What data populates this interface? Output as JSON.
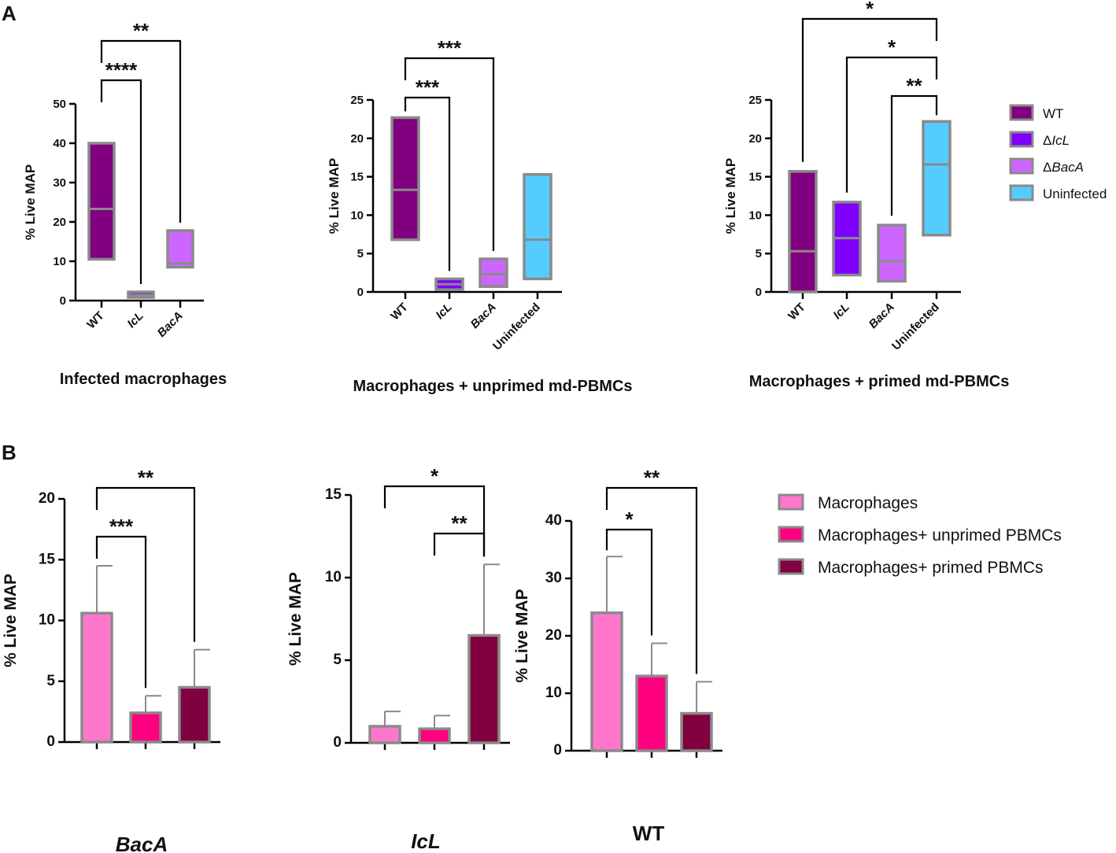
{
  "panel_labels": {
    "a": "A",
    "b": "B"
  },
  "colors": {
    "wt": "#800080",
    "icl": "#8000ff",
    "baca": "#cc66ff",
    "uninfected": "#55ccff",
    "macrophages": "#ff77cc",
    "unprimed": "#ff0080",
    "primed": "#800040",
    "outline": "#8a8a8a"
  },
  "legend_a": {
    "items": [
      {
        "key": "wt",
        "label": "WT",
        "prefix": "",
        "italic": false
      },
      {
        "key": "icl",
        "label": "IcL",
        "prefix": "Δ",
        "italic": true
      },
      {
        "key": "baca",
        "label": "BacA",
        "prefix": "Δ",
        "italic": true
      },
      {
        "key": "uninfected",
        "label": "Uninfected",
        "prefix": "",
        "italic": false
      }
    ]
  },
  "legend_b": {
    "items": [
      {
        "key": "macrophages",
        "label": "Macrophages"
      },
      {
        "key": "unprimed",
        "label": "Macrophages+ unprimed PBMCs"
      },
      {
        "key": "primed",
        "label": "Macrophages+ primed PBMCs"
      }
    ]
  },
  "chart_data": [
    {
      "id": "a1",
      "type": "box",
      "title": "Infected macrophages",
      "ylabel": "% Live MAP",
      "ylim": [
        0,
        50
      ],
      "yticks": [
        0,
        10,
        20,
        30,
        40,
        50
      ],
      "categories": [
        "WT",
        "IcL",
        "BacA"
      ],
      "italic": [
        false,
        true,
        true
      ],
      "colors": [
        "wt",
        "icl",
        "baca"
      ],
      "boxes": [
        {
          "min": 10.5,
          "median": 23.3,
          "max": 40.0
        },
        {
          "min": 0.8,
          "median": 1.4,
          "max": 2.2
        },
        {
          "min": 8.5,
          "median": 9.5,
          "max": 17.8
        }
      ],
      "brackets": [
        {
          "from": 0,
          "to": 1,
          "label": "****",
          "level": 0
        },
        {
          "from": 0,
          "to": 2,
          "label": "**",
          "level": 1
        }
      ]
    },
    {
      "id": "a2",
      "type": "box",
      "title": "Macrophages + unprimed md-PBMCs",
      "ylabel": "% Live MAP",
      "ylim": [
        0,
        25
      ],
      "yticks": [
        0,
        5,
        10,
        15,
        20,
        25
      ],
      "categories": [
        "WT",
        "IcL",
        "BacA",
        "Uninfected"
      ],
      "italic": [
        false,
        true,
        true,
        false
      ],
      "colors": [
        "wt",
        "icl",
        "baca",
        "uninfected"
      ],
      "boxes": [
        {
          "min": 6.8,
          "median": 13.3,
          "max": 22.7
        },
        {
          "min": 0.3,
          "median": 1.0,
          "max": 1.7
        },
        {
          "min": 0.7,
          "median": 2.3,
          "max": 4.3
        },
        {
          "min": 1.7,
          "median": 6.8,
          "max": 15.3
        }
      ],
      "brackets": [
        {
          "from": 0,
          "to": 1,
          "label": "***",
          "level": 0
        },
        {
          "from": 0,
          "to": 2,
          "label": "***",
          "level": 1
        }
      ]
    },
    {
      "id": "a3",
      "type": "box",
      "title": "Macrophages + primed md-PBMCs",
      "ylabel": "% Live MAP",
      "ylim": [
        0,
        25
      ],
      "yticks": [
        0,
        5,
        10,
        15,
        20,
        25
      ],
      "categories": [
        "WT",
        "IcL",
        "BacA",
        "Uninfected"
      ],
      "italic": [
        false,
        true,
        true,
        false
      ],
      "colors": [
        "wt",
        "icl",
        "baca",
        "uninfected"
      ],
      "boxes": [
        {
          "min": 0.0,
          "median": 5.3,
          "max": 15.7
        },
        {
          "min": 2.2,
          "median": 7.0,
          "max": 11.7
        },
        {
          "min": 1.4,
          "median": 4.0,
          "max": 8.7
        },
        {
          "min": 7.4,
          "median": 16.6,
          "max": 22.2
        }
      ],
      "brackets": [
        {
          "from": 2,
          "to": 3,
          "label": "**",
          "level": 0
        },
        {
          "from": 1,
          "to": 3,
          "label": "*",
          "level": 1
        },
        {
          "from": 0,
          "to": 3,
          "label": "*",
          "level": 2
        }
      ]
    },
    {
      "id": "b1",
      "type": "bar",
      "title": "BacA",
      "title_italic": true,
      "ylabel": "% Live MAP",
      "ylim": [
        0,
        20
      ],
      "yticks": [
        0,
        5,
        10,
        15,
        20
      ],
      "categories": [
        "Macrophages",
        "Macrophages+ unprimed PBMCs",
        "Macrophages+ primed PBMCs"
      ],
      "colors": [
        "macrophages",
        "unprimed",
        "primed"
      ],
      "values": [
        10.6,
        2.4,
        4.5
      ],
      "errors": [
        3.9,
        1.4,
        3.1
      ],
      "brackets": [
        {
          "from": 0,
          "to": 1,
          "label": "***",
          "level": 0
        },
        {
          "from": 0,
          "to": 2,
          "label": "**",
          "level": 1
        }
      ]
    },
    {
      "id": "b2",
      "type": "bar",
      "title": "IcL",
      "title_italic": true,
      "ylabel": "% Live MAP",
      "ylim": [
        0,
        15
      ],
      "yticks": [
        0,
        5,
        10,
        15
      ],
      "categories": [
        "Macrophages",
        "Macrophages+ unprimed PBMCs",
        "Macrophages+ primed PBMCs"
      ],
      "colors": [
        "macrophages",
        "unprimed",
        "primed"
      ],
      "values": [
        1.0,
        0.85,
        6.5
      ],
      "errors": [
        0.9,
        0.8,
        4.3
      ],
      "brackets": [
        {
          "from": 1,
          "to": 2,
          "label": "**",
          "level": 0
        },
        {
          "from": 0,
          "to": 2,
          "label": "*",
          "level": 1
        }
      ]
    },
    {
      "id": "b3",
      "type": "bar",
      "title": "WT",
      "title_italic": false,
      "ylabel": "% Live MAP",
      "ylim": [
        0,
        40
      ],
      "yticks": [
        0,
        10,
        20,
        30,
        40
      ],
      "categories": [
        "Macrophages",
        "Macrophages+ unprimed PBMCs",
        "Macrophages+ primed PBMCs"
      ],
      "colors": [
        "macrophages",
        "unprimed",
        "primed"
      ],
      "values": [
        24.0,
        13.0,
        6.5
      ],
      "errors": [
        9.8,
        5.7,
        5.5
      ],
      "brackets": [
        {
          "from": 0,
          "to": 1,
          "label": "*",
          "level": 0
        },
        {
          "from": 0,
          "to": 2,
          "label": "**",
          "level": 1
        }
      ]
    }
  ]
}
